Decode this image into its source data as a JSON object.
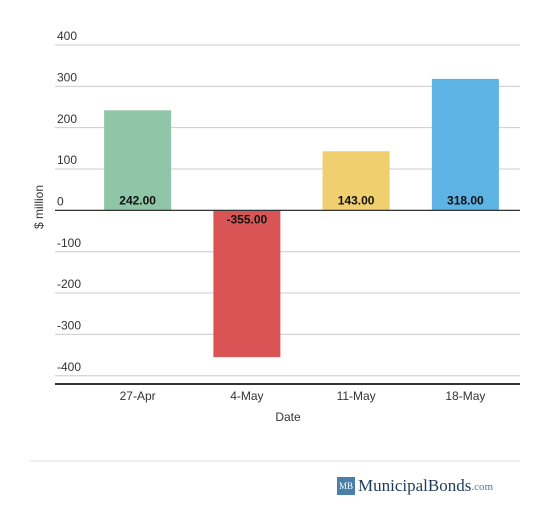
{
  "chart_data": {
    "type": "bar",
    "title": null,
    "x_label": "Date",
    "y_label": "$ million",
    "categories": [
      "27-Apr",
      "4-May",
      "11-May",
      "18-May"
    ],
    "values": [
      242,
      -355,
      143,
      318
    ],
    "value_labels": [
      "242.00",
      "-355.00",
      "143.00",
      "318.00"
    ],
    "colors": [
      "#8fc6a8",
      "#d95555",
      "#f0cf6e",
      "#5db4e4"
    ],
    "ylim": [
      -420,
      400
    ],
    "yticks": [
      -400,
      -300,
      -200,
      -100,
      0,
      100,
      200,
      300,
      400
    ],
    "grid": true
  },
  "footer": {
    "logo": "MB",
    "brand": "MunicipalBonds",
    "suffix": ".com"
  }
}
